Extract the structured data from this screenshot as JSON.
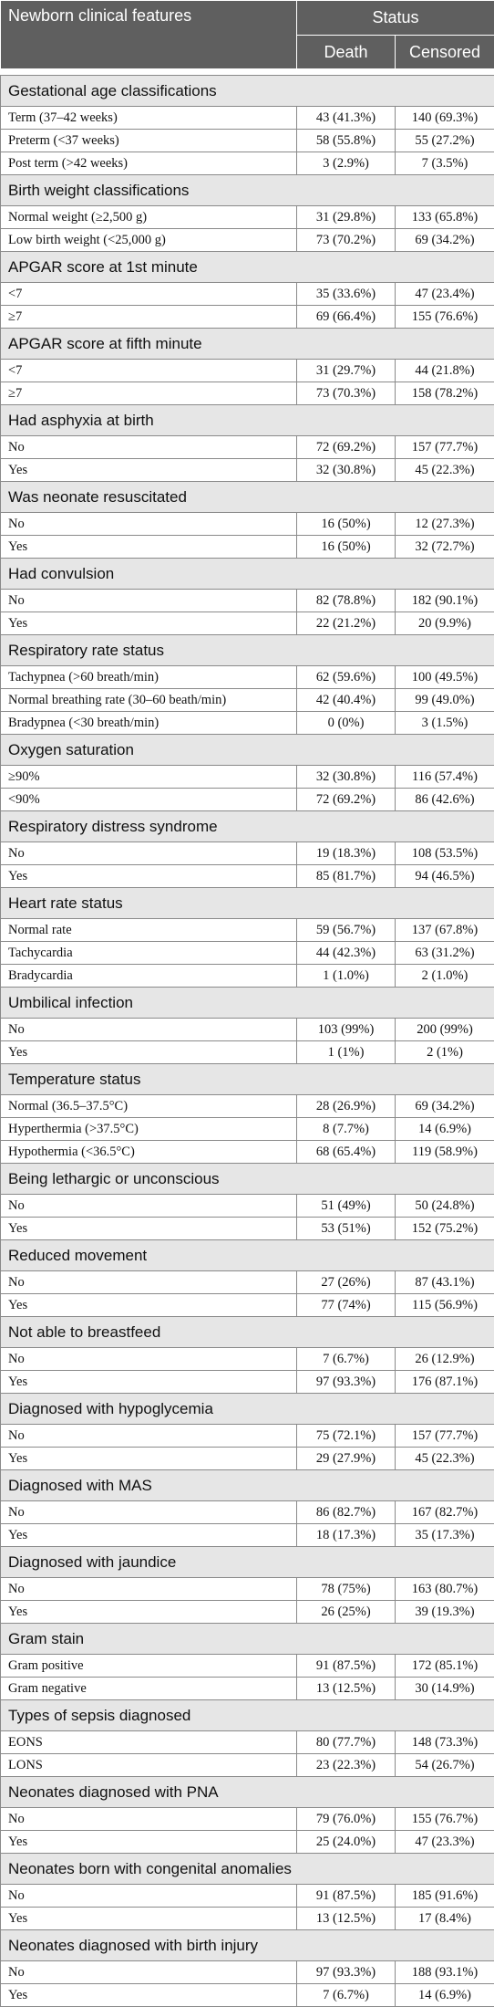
{
  "header": {
    "feature_col": "Newborn clinical features",
    "status": "Status",
    "death": "Death",
    "censored": "Censored"
  },
  "sections": [
    {
      "title": "Gestational age classifications",
      "rows": [
        {
          "label": "Term (37–42 weeks)",
          "death": "43 (41.3%)",
          "censored": "140 (69.3%)"
        },
        {
          "label": "Preterm (<37 weeks)",
          "death": "58 (55.8%)",
          "censored": "55 (27.2%)"
        },
        {
          "label": "Post term (>42 weeks)",
          "death": "3 (2.9%)",
          "censored": "7 (3.5%)"
        }
      ]
    },
    {
      "title": "Birth weight classifications",
      "rows": [
        {
          "label": "Normal weight (≥2,500 g)",
          "death": "31 (29.8%)",
          "censored": "133 (65.8%)"
        },
        {
          "label": "Low birth weight (<25,000 g)",
          "death": "73 (70.2%)",
          "censored": "69 (34.2%)"
        }
      ]
    },
    {
      "title": "APGAR score at 1st minute",
      "rows": [
        {
          "label": "<7",
          "death": "35 (33.6%)",
          "censored": "47 (23.4%)"
        },
        {
          "label": "≥7",
          "death": "69 (66.4%)",
          "censored": "155 (76.6%)"
        }
      ]
    },
    {
      "title": "APGAR score at fifth minute",
      "rows": [
        {
          "label": "<7",
          "death": "31 (29.7%)",
          "censored": "44 (21.8%)"
        },
        {
          "label": "≥7",
          "death": "73 (70.3%)",
          "censored": "158 (78.2%)"
        }
      ]
    },
    {
      "title": "Had asphyxia at birth",
      "rows": [
        {
          "label": "No",
          "death": "72 (69.2%)",
          "censored": "157 (77.7%)"
        },
        {
          "label": "Yes",
          "death": "32 (30.8%)",
          "censored": "45 (22.3%)"
        }
      ]
    },
    {
      "title": "Was neonate resuscitated",
      "rows": [
        {
          "label": "No",
          "death": "16 (50%)",
          "censored": "12 (27.3%)"
        },
        {
          "label": "Yes",
          "death": "16 (50%)",
          "censored": "32 (72.7%)"
        }
      ]
    },
    {
      "title": "Had convulsion",
      "rows": [
        {
          "label": "No",
          "death": "82 (78.8%)",
          "censored": "182 (90.1%)"
        },
        {
          "label": "Yes",
          "death": "22 (21.2%)",
          "censored": "20 (9.9%)"
        }
      ]
    },
    {
      "title": "Respiratory rate status",
      "rows": [
        {
          "label": "Tachypnea (>60 breath/min)",
          "death": "62 (59.6%)",
          "censored": "100 (49.5%)"
        },
        {
          "label": "Normal breathing rate (30–60 beath/min)",
          "death": "42 (40.4%)",
          "censored": "99 (49.0%)"
        },
        {
          "label": "Bradypnea (<30 breath/min)",
          "death": "0 (0%)",
          "censored": "3 (1.5%)"
        }
      ]
    },
    {
      "title": "Oxygen saturation",
      "rows": [
        {
          "label": "≥90%",
          "death": "32 (30.8%)",
          "censored": "116 (57.4%)"
        },
        {
          "label": "<90%",
          "death": "72 (69.2%)",
          "censored": "86 (42.6%)"
        }
      ]
    },
    {
      "title": "Respiratory distress syndrome",
      "rows": [
        {
          "label": "No",
          "death": "19 (18.3%)",
          "censored": "108 (53.5%)"
        },
        {
          "label": "Yes",
          "death": "85 (81.7%)",
          "censored": "94 (46.5%)"
        }
      ]
    },
    {
      "title": "Heart rate status",
      "rows": [
        {
          "label": "Normal rate",
          "death": "59 (56.7%)",
          "censored": "137 (67.8%)"
        },
        {
          "label": "Tachycardia",
          "death": "44 (42.3%)",
          "censored": "63 (31.2%)"
        },
        {
          "label": "Bradycardia",
          "death": "1 (1.0%)",
          "censored": "2 (1.0%)"
        }
      ]
    },
    {
      "title": "Umbilical infection",
      "rows": [
        {
          "label": "No",
          "death": "103 (99%)",
          "censored": "200 (99%)"
        },
        {
          "label": "Yes",
          "death": "1 (1%)",
          "censored": "2 (1%)"
        }
      ]
    },
    {
      "title": "Temperature status",
      "rows": [
        {
          "label": "Normal (36.5–37.5°C)",
          "death": "28 (26.9%)",
          "censored": "69 (34.2%)"
        },
        {
          "label": "Hyperthermia (>37.5°C)",
          "death": "8 (7.7%)",
          "censored": "14 (6.9%)"
        },
        {
          "label": "Hypothermia (<36.5°C)",
          "death": "68 (65.4%)",
          "censored": "119 (58.9%)"
        }
      ]
    },
    {
      "title": "Being lethargic or unconscious",
      "rows": [
        {
          "label": "No",
          "death": "51 (49%)",
          "censored": "50 (24.8%)"
        },
        {
          "label": "Yes",
          "death": "53 (51%)",
          "censored": "152 (75.2%)"
        }
      ]
    },
    {
      "title": "Reduced movement",
      "rows": [
        {
          "label": "No",
          "death": "27 (26%)",
          "censored": "87 (43.1%)"
        },
        {
          "label": "Yes",
          "death": "77 (74%)",
          "censored": "115 (56.9%)"
        }
      ]
    },
    {
      "title": "Not able to breastfeed",
      "rows": [
        {
          "label": "No",
          "death": "7 (6.7%)",
          "censored": "26 (12.9%)"
        },
        {
          "label": "Yes",
          "death": "97 (93.3%)",
          "censored": "176 (87.1%)"
        }
      ]
    },
    {
      "title": "Diagnosed with hypoglycemia",
      "rows": [
        {
          "label": "No",
          "death": "75 (72.1%)",
          "censored": "157 (77.7%)"
        },
        {
          "label": "Yes",
          "death": "29 (27.9%)",
          "censored": "45 (22.3%)"
        }
      ]
    },
    {
      "title": "Diagnosed with MAS",
      "rows": [
        {
          "label": "No",
          "death": "86 (82.7%)",
          "censored": "167 (82.7%)"
        },
        {
          "label": "Yes",
          "death": "18 (17.3%)",
          "censored": "35 (17.3%)"
        }
      ]
    },
    {
      "title": "Diagnosed with jaundice",
      "rows": [
        {
          "label": "No",
          "death": "78 (75%)",
          "censored": "163 (80.7%)"
        },
        {
          "label": "Yes",
          "death": "26 (25%)",
          "censored": "39 (19.3%)"
        }
      ]
    },
    {
      "title": "Gram stain",
      "rows": [
        {
          "label": "Gram positive",
          "death": "91 (87.5%)",
          "censored": "172 (85.1%)"
        },
        {
          "label": "Gram negative",
          "death": "13 (12.5%)",
          "censored": "30 (14.9%)"
        }
      ]
    },
    {
      "title": "Types of sepsis diagnosed",
      "rows": [
        {
          "label": "EONS",
          "death": "80 (77.7%)",
          "censored": "148 (73.3%)"
        },
        {
          "label": "LONS",
          "death": "23 (22.3%)",
          "censored": "54 (26.7%)"
        }
      ]
    },
    {
      "title": "Neonates diagnosed with PNA",
      "rows": [
        {
          "label": "No",
          "death": "79 (76.0%)",
          "censored": "155 (76.7%)"
        },
        {
          "label": "Yes",
          "death": "25 (24.0%)",
          "censored": "47 (23.3%)"
        }
      ]
    },
    {
      "title": "Neonates born with congenital anomalies",
      "rows": [
        {
          "label": "No",
          "death": "91 (87.5%)",
          "censored": "185 (91.6%)"
        },
        {
          "label": "Yes",
          "death": "13 (12.5%)",
          "censored": "17 (8.4%)"
        }
      ]
    },
    {
      "title": "Neonates diagnosed with birth injury",
      "rows": [
        {
          "label": "No",
          "death": "97 (93.3%)",
          "censored": "188 (93.1%)"
        },
        {
          "label": "Yes",
          "death": "7 (6.7%)",
          "censored": "14 (6.9%)"
        }
      ]
    }
  ]
}
